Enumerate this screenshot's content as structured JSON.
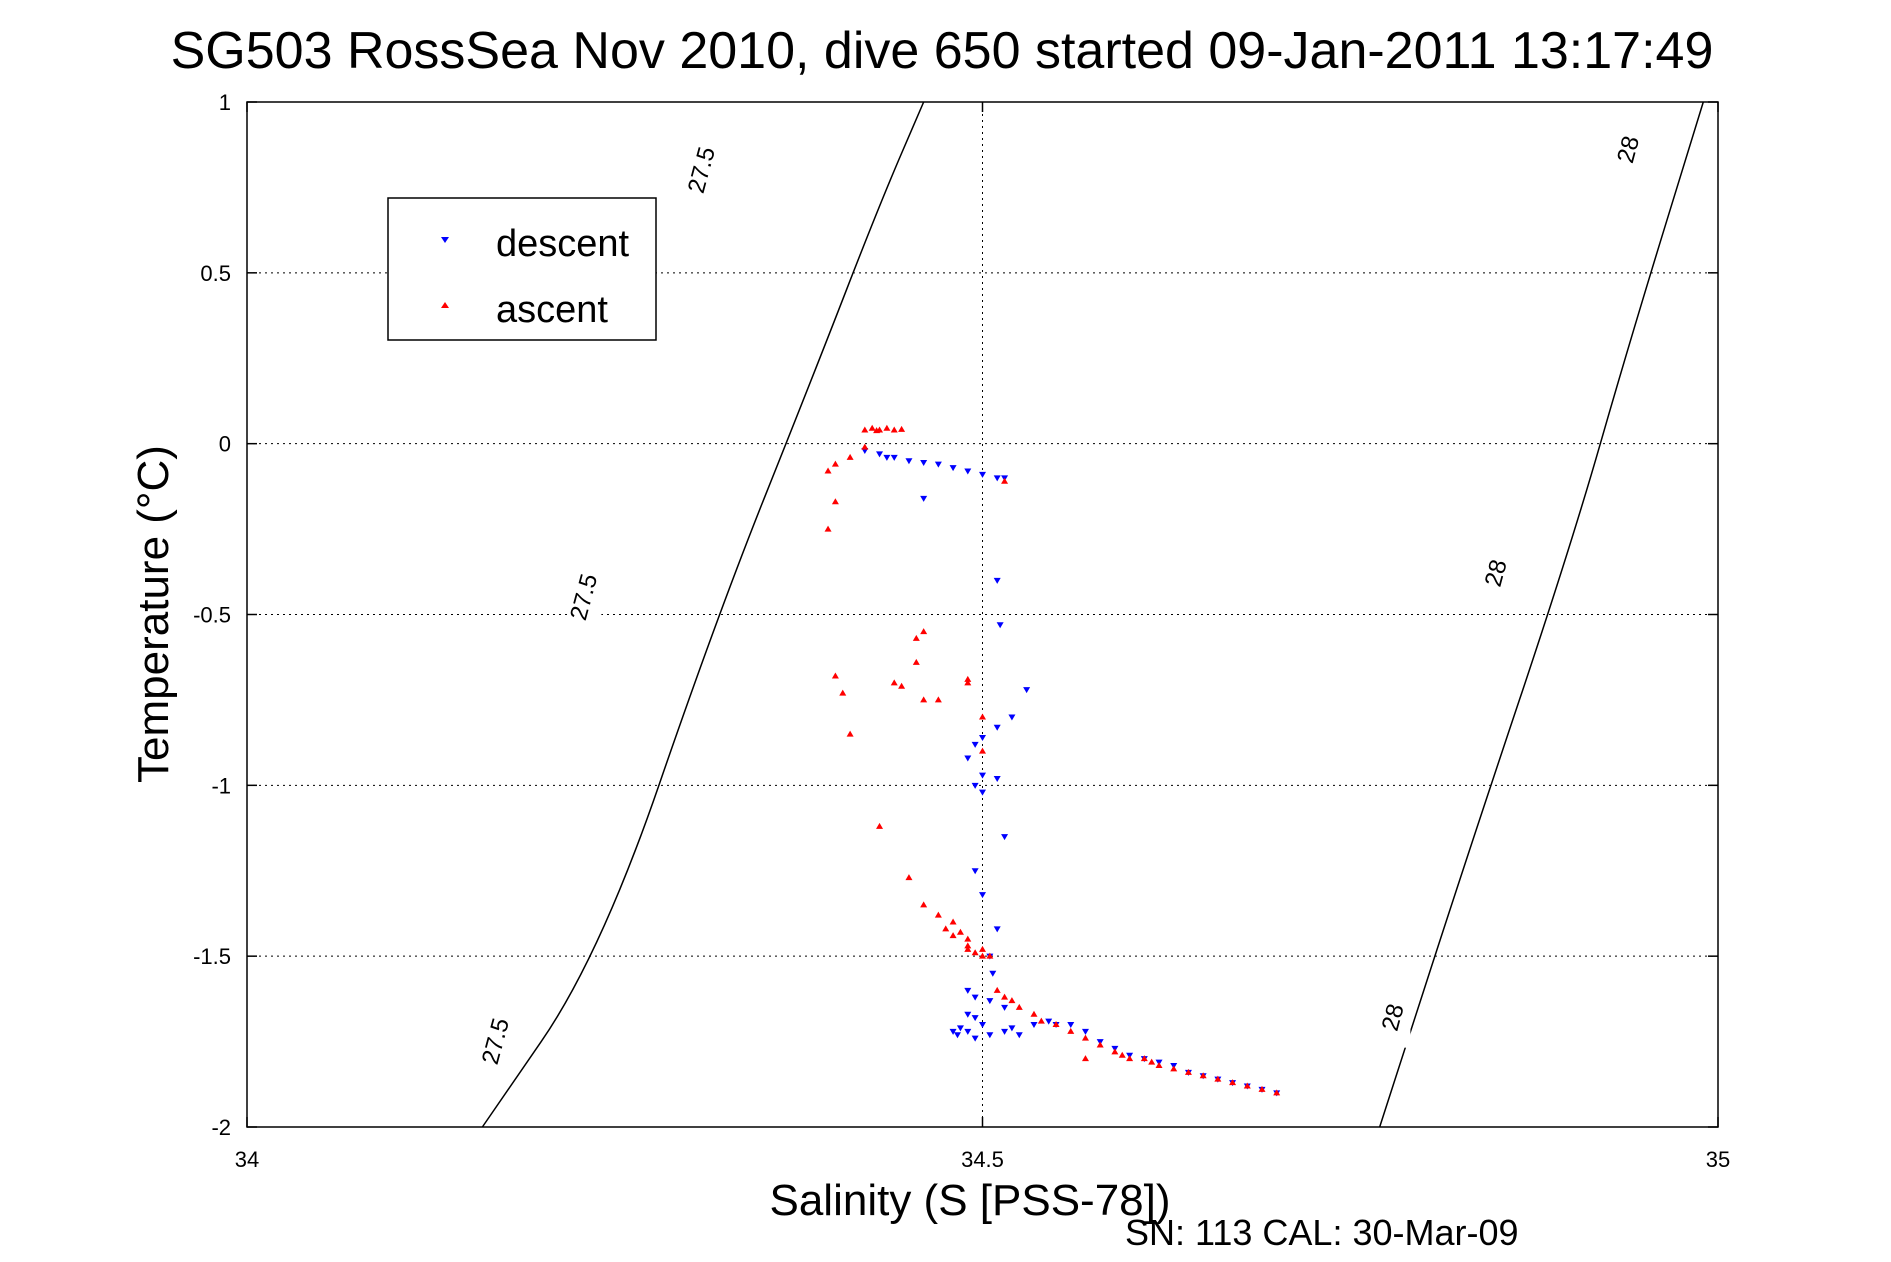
{
  "chart_data": {
    "type": "scatter",
    "title": "SG503 RossSea Nov 2010, dive 650 started 09-Jan-2011 13:17:49",
    "xlabel": "Salinity (S [PSS-78])",
    "ylabel": "Temperature (°C)",
    "footer": "SN: 113  CAL: 30-Mar-09",
    "xlim": [
      34,
      35
    ],
    "ylim": [
      -2,
      1
    ],
    "xticks": [
      "34",
      "34.5",
      "35"
    ],
    "yticks": [
      "1",
      "0.5",
      "0",
      "-0.5",
      "-1",
      "-1.5",
      "-2"
    ],
    "grid": true,
    "legend": {
      "position": "top-left"
    },
    "series": [
      {
        "name": "descent",
        "color": "#0000ff",
        "marker": "triangle-down",
        "points": [
          [
            34.42,
            -0.02
          ],
          [
            34.43,
            -0.03
          ],
          [
            34.435,
            -0.04
          ],
          [
            34.44,
            -0.04
          ],
          [
            34.45,
            -0.05
          ],
          [
            34.46,
            -0.055
          ],
          [
            34.47,
            -0.06
          ],
          [
            34.48,
            -0.07
          ],
          [
            34.49,
            -0.08
          ],
          [
            34.5,
            -0.09
          ],
          [
            34.51,
            -0.1
          ],
          [
            34.515,
            -0.1
          ],
          [
            34.46,
            -0.16
          ],
          [
            34.51,
            -0.4
          ],
          [
            34.512,
            -0.53
          ],
          [
            34.53,
            -0.72
          ],
          [
            34.52,
            -0.8
          ],
          [
            34.51,
            -0.83
          ],
          [
            34.5,
            -0.86
          ],
          [
            34.495,
            -0.88
          ],
          [
            34.49,
            -0.92
          ],
          [
            34.5,
            -0.97
          ],
          [
            34.51,
            -0.98
          ],
          [
            34.495,
            -1.0
          ],
          [
            34.5,
            -1.02
          ],
          [
            34.515,
            -1.15
          ],
          [
            34.495,
            -1.25
          ],
          [
            34.5,
            -1.32
          ],
          [
            34.51,
            -1.42
          ],
          [
            34.505,
            -1.5
          ],
          [
            34.507,
            -1.55
          ],
          [
            34.49,
            -1.6
          ],
          [
            34.495,
            -1.62
          ],
          [
            34.505,
            -1.63
          ],
          [
            34.515,
            -1.65
          ],
          [
            34.49,
            -1.67
          ],
          [
            34.495,
            -1.68
          ],
          [
            34.5,
            -1.7
          ],
          [
            34.485,
            -1.71
          ],
          [
            34.49,
            -1.72
          ],
          [
            34.48,
            -1.72
          ],
          [
            34.483,
            -1.73
          ],
          [
            34.495,
            -1.74
          ],
          [
            34.505,
            -1.73
          ],
          [
            34.515,
            -1.72
          ],
          [
            34.52,
            -1.71
          ],
          [
            34.525,
            -1.73
          ],
          [
            34.535,
            -1.7
          ],
          [
            34.545,
            -1.69
          ],
          [
            34.55,
            -1.7
          ],
          [
            34.56,
            -1.7
          ],
          [
            34.57,
            -1.72
          ],
          [
            34.58,
            -1.75
          ],
          [
            34.59,
            -1.77
          ],
          [
            34.6,
            -1.79
          ],
          [
            34.61,
            -1.8
          ],
          [
            34.62,
            -1.81
          ],
          [
            34.63,
            -1.82
          ],
          [
            34.64,
            -1.84
          ],
          [
            34.65,
            -1.85
          ],
          [
            34.66,
            -1.86
          ],
          [
            34.67,
            -1.87
          ],
          [
            34.68,
            -1.88
          ],
          [
            34.69,
            -1.89
          ],
          [
            34.7,
            -1.9
          ]
        ]
      },
      {
        "name": "ascent",
        "color": "#ff0000",
        "marker": "triangle-up",
        "points": [
          [
            34.42,
            0.04
          ],
          [
            34.425,
            0.045
          ],
          [
            34.43,
            0.04
          ],
          [
            34.435,
            0.045
          ],
          [
            34.44,
            0.04
          ],
          [
            34.445,
            0.042
          ],
          [
            34.428,
            0.038
          ],
          [
            34.42,
            -0.01
          ],
          [
            34.41,
            -0.04
          ],
          [
            34.4,
            -0.06
          ],
          [
            34.395,
            -0.08
          ],
          [
            34.4,
            -0.17
          ],
          [
            34.395,
            -0.25
          ],
          [
            34.515,
            -0.11
          ],
          [
            34.46,
            -0.55
          ],
          [
            34.455,
            -0.57
          ],
          [
            34.455,
            -0.64
          ],
          [
            34.44,
            -0.7
          ],
          [
            34.445,
            -0.71
          ],
          [
            34.4,
            -0.68
          ],
          [
            34.405,
            -0.73
          ],
          [
            34.46,
            -0.75
          ],
          [
            34.47,
            -0.75
          ],
          [
            34.49,
            -0.7
          ],
          [
            34.49,
            -0.69
          ],
          [
            34.5,
            -0.8
          ],
          [
            34.5,
            -0.9
          ],
          [
            34.41,
            -0.85
          ],
          [
            34.43,
            -1.12
          ],
          [
            34.45,
            -1.27
          ],
          [
            34.46,
            -1.35
          ],
          [
            34.47,
            -1.38
          ],
          [
            34.48,
            -1.4
          ],
          [
            34.475,
            -1.42
          ],
          [
            34.485,
            -1.43
          ],
          [
            34.49,
            -1.45
          ],
          [
            34.48,
            -1.44
          ],
          [
            34.49,
            -1.47
          ],
          [
            34.5,
            -1.48
          ],
          [
            34.495,
            -1.49
          ],
          [
            34.5,
            -1.5
          ],
          [
            34.505,
            -1.5
          ],
          [
            34.49,
            -1.48
          ],
          [
            34.51,
            -1.6
          ],
          [
            34.515,
            -1.62
          ],
          [
            34.52,
            -1.63
          ],
          [
            34.525,
            -1.65
          ],
          [
            34.535,
            -1.67
          ],
          [
            34.54,
            -1.69
          ],
          [
            34.55,
            -1.7
          ],
          [
            34.56,
            -1.72
          ],
          [
            34.57,
            -1.74
          ],
          [
            34.58,
            -1.76
          ],
          [
            34.59,
            -1.78
          ],
          [
            34.595,
            -1.79
          ],
          [
            34.6,
            -1.8
          ],
          [
            34.61,
            -1.8
          ],
          [
            34.615,
            -1.81
          ],
          [
            34.62,
            -1.82
          ],
          [
            34.63,
            -1.83
          ],
          [
            34.64,
            -1.84
          ],
          [
            34.65,
            -1.85
          ],
          [
            34.66,
            -1.86
          ],
          [
            34.67,
            -1.87
          ],
          [
            34.68,
            -1.88
          ],
          [
            34.69,
            -1.89
          ],
          [
            34.7,
            -1.9
          ],
          [
            34.57,
            -1.8
          ]
        ]
      }
    ],
    "contours": [
      {
        "label": "27.5",
        "color": "#000000",
        "points": [
          [
            34.16,
            -2
          ],
          [
            34.24,
            -1.5
          ],
          [
            34.32,
            -0.5
          ],
          [
            34.385,
            0.2
          ],
          [
            34.43,
            0.7
          ],
          [
            34.46,
            1
          ]
        ],
        "labels": [
          {
            "text": "27.5",
            "x": 34.17,
            "y": -1.75
          },
          {
            "text": "27.5",
            "x": 34.23,
            "y": -0.45
          },
          {
            "text": "27.5",
            "x": 34.31,
            "y": 0.8
          }
        ]
      },
      {
        "label": "28",
        "color": "#000000",
        "points": [
          [
            34.77,
            -2
          ],
          [
            34.83,
            -1.2
          ],
          [
            34.9,
            -0.3
          ],
          [
            34.94,
            0.3
          ],
          [
            34.99,
            1
          ]
        ],
        "labels": [
          {
            "text": "28",
            "x": 34.78,
            "y": -1.68
          },
          {
            "text": "28",
            "x": 34.85,
            "y": -0.38
          },
          {
            "text": "28",
            "x": 34.94,
            "y": 0.86
          }
        ]
      }
    ]
  }
}
